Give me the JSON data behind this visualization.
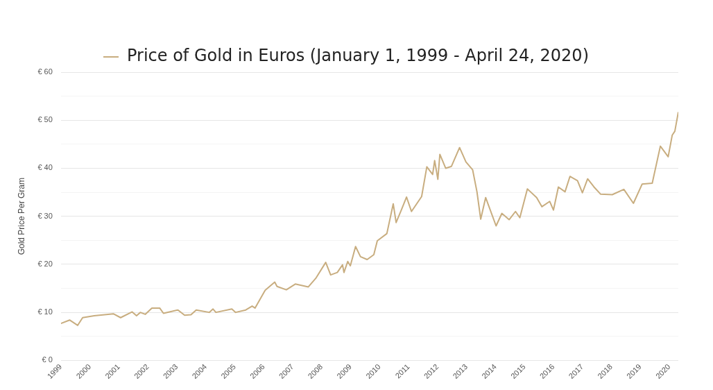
{
  "chart_data": {
    "type": "line",
    "ylabel": "Gold Price Per Gram",
    "legend": "top",
    "grid": "y",
    "marker": "none",
    "line_style": "solid",
    "xlim": [
      1999,
      2020.31
    ],
    "xticks": [
      1999,
      2000,
      2001,
      2002,
      2003,
      2004,
      2005,
      2006,
      2007,
      2008,
      2009,
      2010,
      2011,
      2012,
      2013,
      2014,
      2015,
      2016,
      2017,
      2018,
      2019,
      2020
    ],
    "ylim": [
      0,
      60
    ],
    "yticks": [
      {
        "value": 0,
        "label": "€ 0"
      },
      {
        "value": 5,
        "label": null
      },
      {
        "value": 10,
        "label": "€ 10"
      },
      {
        "value": 15,
        "label": null
      },
      {
        "value": 20,
        "label": "€ 20"
      },
      {
        "value": 25,
        "label": null
      },
      {
        "value": 30,
        "label": "€ 30"
      },
      {
        "value": 35,
        "label": null
      },
      {
        "value": 40,
        "label": "€ 40"
      },
      {
        "value": 45,
        "label": null
      },
      {
        "value": 50,
        "label": "€ 50"
      },
      {
        "value": 55,
        "label": null
      },
      {
        "value": 60,
        "label": "€ 60"
      }
    ],
    "series": [
      {
        "name": "Price of Gold in Euros (January 1, 1999 - April 24, 2020)",
        "color": "#c8ad7f",
        "x": [
          1999,
          1999.3,
          1999.58,
          1999.75,
          2000.15,
          2000.81,
          2001.06,
          2001.46,
          2001.61,
          2001.74,
          2001.91,
          2002.14,
          2002.41,
          2002.54,
          2003.04,
          2003.27,
          2003.49,
          2003.67,
          2004.12,
          2004.25,
          2004.35,
          2004.9,
          2005.03,
          2005.38,
          2005.6,
          2005.7,
          2006.05,
          2006.38,
          2006.46,
          2006.78,
          2007.09,
          2007.54,
          2007.81,
          2008.14,
          2008.31,
          2008.54,
          2008.72,
          2008.77,
          2008.9,
          2008.99,
          2009.17,
          2009.34,
          2009.57,
          2009.8,
          2009.92,
          2010.25,
          2010.47,
          2010.57,
          2010.75,
          2010.93,
          2011.1,
          2011.45,
          2011.63,
          2011.83,
          2011.9,
          2012.01,
          2012.08,
          2012.28,
          2012.48,
          2012.76,
          2012.98,
          2013.21,
          2013.36,
          2013.49,
          2013.66,
          2014.02,
          2014.22,
          2014.47,
          2014.69,
          2014.84,
          2015.1,
          2015.42,
          2015.6,
          2015.87,
          2016,
          2016.17,
          2016.4,
          2016.57,
          2016.83,
          2017,
          2017.18,
          2017.4,
          2017.63,
          2018.03,
          2018.43,
          2018.76,
          2019.06,
          2019.41,
          2019.69,
          2019.96,
          2020.1,
          2020.19,
          2020.31
        ],
        "values": [
          7.7,
          8.4,
          7.3,
          8.9,
          9.3,
          9.7,
          8.9,
          10.1,
          9.3,
          10,
          9.6,
          10.9,
          10.9,
          9.8,
          10.5,
          9.4,
          9.5,
          10.5,
          10,
          10.7,
          10,
          10.7,
          10,
          10.5,
          11.3,
          10.9,
          14.6,
          16.3,
          15.4,
          14.7,
          15.9,
          15.3,
          17.2,
          20.4,
          17.8,
          18.3,
          19.9,
          18.3,
          20.6,
          19.7,
          23.7,
          21.6,
          21,
          22,
          24.9,
          26.4,
          32.6,
          28.7,
          31.3,
          34,
          31,
          34.1,
          40.3,
          38.7,
          41.6,
          37.7,
          42.9,
          40,
          40.4,
          44.3,
          41.3,
          39.7,
          35.1,
          29.4,
          33.9,
          28,
          30.6,
          29.3,
          31,
          29.7,
          35.7,
          33.9,
          32,
          33.1,
          31.3,
          36.1,
          35.1,
          38.3,
          37.4,
          34.9,
          37.8,
          36.1,
          34.6,
          34.5,
          35.6,
          32.7,
          36.7,
          36.9,
          44.6,
          42.4,
          46.9,
          47.7,
          51.7
        ]
      }
    ]
  }
}
